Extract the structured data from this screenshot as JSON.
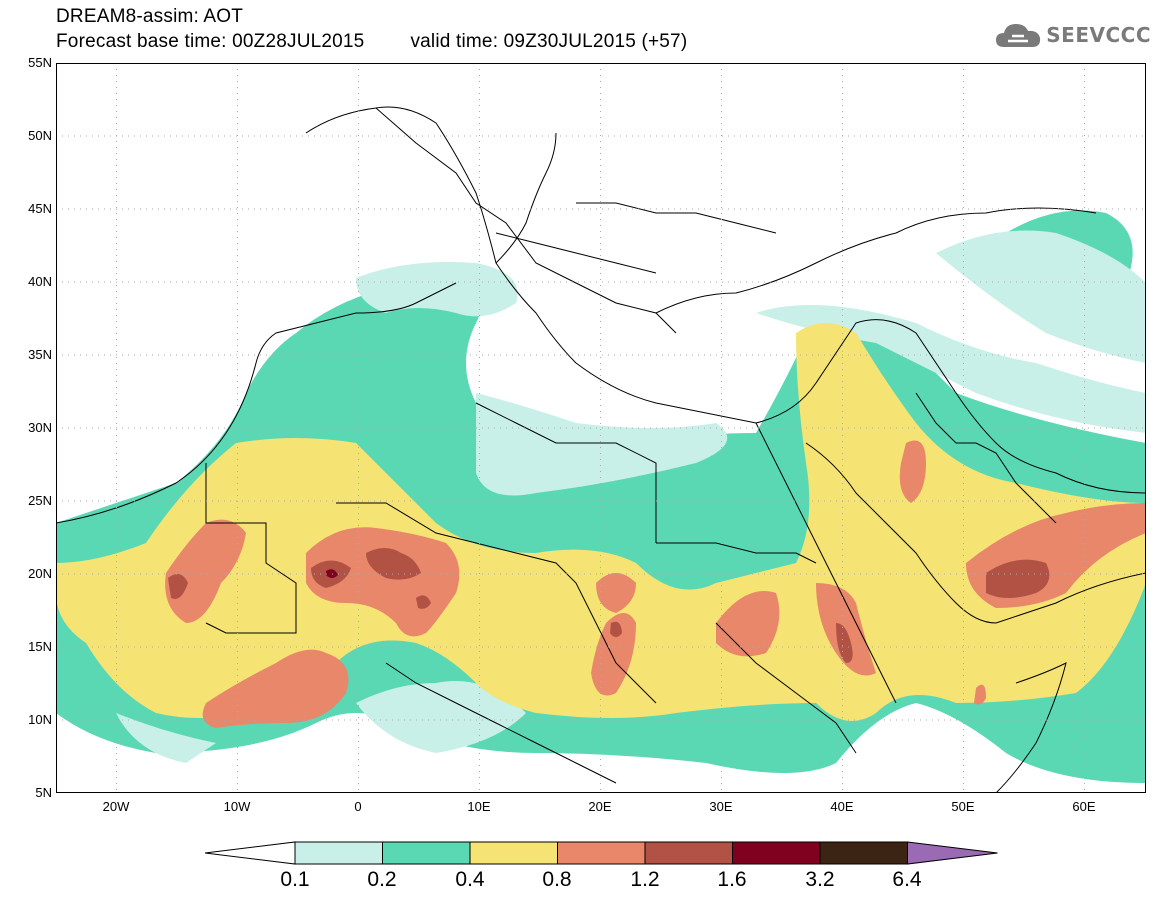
{
  "header": {
    "title": "DREAM8-assim: AOT",
    "forecast_base": "Forecast base time: 00Z28JUL2015",
    "valid_time": "valid time: 09Z30JUL2015 (+57)"
  },
  "logo": {
    "text": "SEEVCCC",
    "icon": "cloud-icon"
  },
  "axes": {
    "lat_labels": [
      "55N",
      "50N",
      "45N",
      "40N",
      "35N",
      "30N",
      "25N",
      "20N",
      "15N",
      "10N",
      "5N"
    ],
    "lon_labels": [
      "20W",
      "10W",
      "0",
      "10E",
      "20E",
      "30E",
      "40E",
      "50E",
      "60E"
    ]
  },
  "legend": {
    "thresholds": [
      "0.1",
      "0.2",
      "0.4",
      "0.8",
      "1.2",
      "1.6",
      "3.2",
      "6.4"
    ],
    "colors": [
      "#ffffff",
      "#c8f0e8",
      "#5ad8b4",
      "#f5e374",
      "#e8876a",
      "#b25244",
      "#800020",
      "#3c2414",
      "#9b6ab4"
    ]
  }
}
